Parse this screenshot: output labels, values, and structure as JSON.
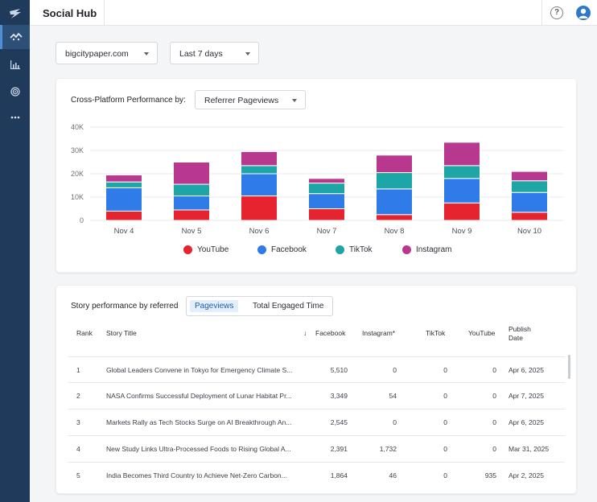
{
  "app": {
    "title": "Social Hub"
  },
  "rail": {
    "items": [
      "logo-icon",
      "social-icon",
      "bar-chart-icon",
      "target-icon",
      "more-icon"
    ]
  },
  "header": {
    "help_label": "?"
  },
  "filters": {
    "site": {
      "value": "bigcitypaper.com"
    },
    "range": {
      "value": "Last 7 days"
    }
  },
  "performance": {
    "label": "Cross-Platform Performance by:",
    "metric": "Referrer Pageviews"
  },
  "chart_data": {
    "type": "bar",
    "stacked": true,
    "categories": [
      "Nov 4",
      "Nov 5",
      "Nov 6",
      "Nov 7",
      "Nov 8",
      "Nov 9",
      "Nov 10"
    ],
    "series": [
      {
        "name": "YouTube",
        "color": "#e5242f",
        "values": [
          4000,
          4500,
          10500,
          5000,
          2500,
          7500,
          3500
        ]
      },
      {
        "name": "Facebook",
        "color": "#2f7be8",
        "values": [
          10000,
          6000,
          9500,
          6500,
          11000,
          10500,
          8500
        ]
      },
      {
        "name": "TikTok",
        "color": "#1ea5a5",
        "values": [
          2500,
          5000,
          3500,
          4500,
          7000,
          5500,
          5000
        ]
      },
      {
        "name": "Instagram",
        "color": "#b8378f",
        "values": [
          3000,
          9500,
          6000,
          2000,
          7500,
          10000,
          4000
        ]
      }
    ],
    "yticks": [
      "0",
      "10K",
      "20K",
      "30K",
      "40K"
    ],
    "ylim": [
      0,
      40000
    ],
    "grid": true,
    "legend": "bottom"
  },
  "stories": {
    "title": "Story performance by referred",
    "toggle": [
      "Pageviews",
      "Total Engaged Time"
    ],
    "sort_icon": "↓",
    "columns": {
      "rank": "Rank",
      "story": "Story Title",
      "facebook": "Facebook",
      "instagram": "Instagram*",
      "tiktok": "TikTok",
      "youtube": "YouTube",
      "publish": "Publish",
      "publish2": "Date"
    },
    "rows": [
      {
        "rank": "1",
        "title": "Global Leaders Convene in Tokyo for Emergency Climate S...",
        "facebook": "5,510",
        "instagram": "0",
        "tiktok": "0",
        "youtube": "0",
        "date": "Apr 6, 2025"
      },
      {
        "rank": "2",
        "title": "NASA Confirms Successful Deployment of Lunar Habitat Pr...",
        "facebook": "3,349",
        "instagram": "54",
        "tiktok": "0",
        "youtube": "0",
        "date": "Apr 7, 2025"
      },
      {
        "rank": "3",
        "title": "Markets Rally as Tech Stocks Surge on AI Breakthrough An...",
        "facebook": "2,545",
        "instagram": "0",
        "tiktok": "0",
        "youtube": "0",
        "date": "Apr 6, 2025"
      },
      {
        "rank": "4",
        "title": "New Study Links Ultra-Processed Foods to Rising Global A...",
        "facebook": "2,391",
        "instagram": "1,732",
        "tiktok": "0",
        "youtube": "0",
        "date": "Mar 31, 2025"
      },
      {
        "rank": "5",
        "title": "India Becomes Third Country to Achieve Net-Zero Carbon...",
        "facebook": "1,864",
        "instagram": "46",
        "tiktok": "0",
        "youtube": "935",
        "date": "Apr 2, 2025"
      }
    ]
  }
}
